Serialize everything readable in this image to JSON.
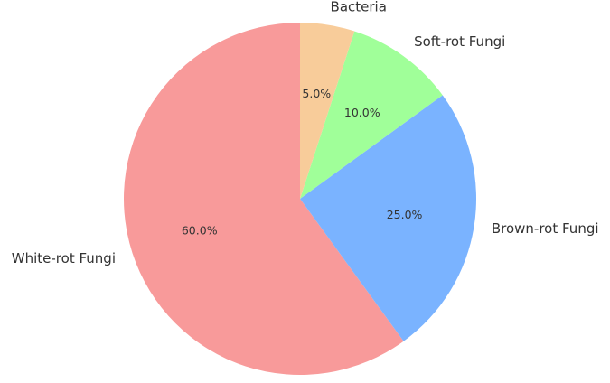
{
  "chart_data": {
    "type": "pie",
    "categories": [
      "White-rot Fungi",
      "Brown-rot Fungi",
      "Soft-rot Fungi",
      "Bacteria"
    ],
    "values": [
      60,
      25,
      10,
      5
    ],
    "value_labels": [
      "60.0%",
      "25.0%",
      "10.0%",
      "5.0%"
    ],
    "colors": [
      "#f89a9a",
      "#7ab3ff",
      "#a0ff99",
      "#f8cc9a"
    ]
  }
}
